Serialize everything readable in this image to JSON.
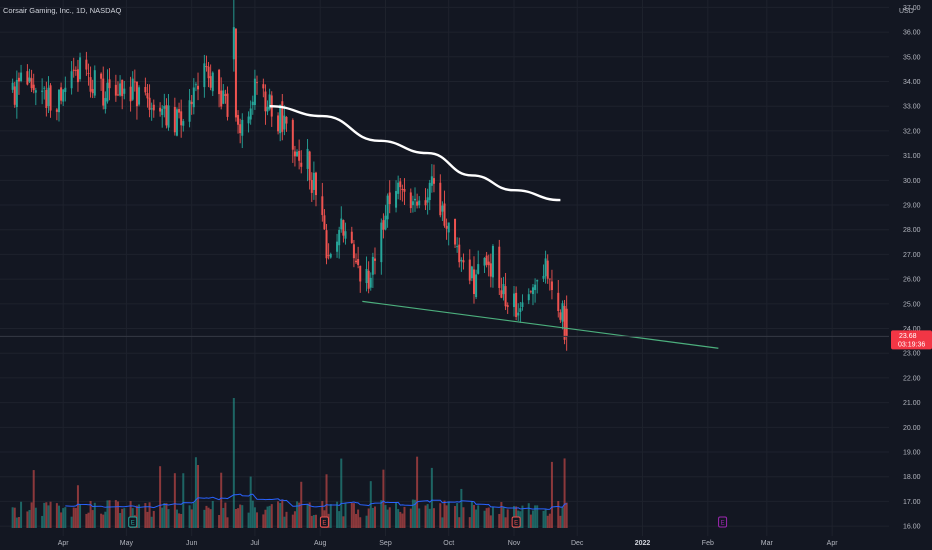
{
  "chart_data": {
    "type": "candlestick",
    "title": "Corsair Gaming, Inc., 1D, NASDAQ",
    "currency": "USD",
    "x_axis_labels": [
      "Apr",
      "May",
      "Jun",
      "Jul",
      "Aug",
      "Sep",
      "Oct",
      "Nov",
      "Dec",
      "2022",
      "Feb",
      "Mar",
      "Apr"
    ],
    "x_axis_dates": [
      "2021-04-01",
      "2021-05-01",
      "2021-06-01",
      "2021-07-01",
      "2021-08-01",
      "2021-09-01",
      "2021-10-01",
      "2021-11-01",
      "2021-12-01",
      "2022-01-01",
      "2022-02-01",
      "2022-03-01",
      "2022-04-01"
    ],
    "x_range": [
      "2021-03-02",
      "2022-04-28"
    ],
    "y_ticks": [
      16.0,
      17.0,
      18.0,
      19.0,
      20.0,
      21.0,
      22.0,
      23.0,
      24.0,
      25.0,
      26.0,
      27.0,
      28.0,
      29.0,
      30.0,
      31.0,
      32.0,
      33.0,
      34.0,
      35.0,
      36.0,
      37.0
    ],
    "ylim": [
      15.6,
      37.3
    ],
    "last_price": "23.68",
    "countdown": "03:19:36",
    "price_anchors": [
      {
        "date": "2021-03-08",
        "price": 33.6
      },
      {
        "date": "2021-03-18",
        "price": 33.9
      },
      {
        "date": "2021-03-30",
        "price": 33.2
      },
      {
        "date": "2021-04-09",
        "price": 34.4
      },
      {
        "date": "2021-04-19",
        "price": 33.6
      },
      {
        "date": "2021-05-03",
        "price": 33.8
      },
      {
        "date": "2021-05-14",
        "price": 32.5
      },
      {
        "date": "2021-05-26",
        "price": 32.4
      },
      {
        "date": "2021-06-07",
        "price": 34.2
      },
      {
        "date": "2021-06-15",
        "price": 33.4
      },
      {
        "date": "2021-06-24",
        "price": 32.5
      },
      {
        "date": "2021-07-01",
        "price": 33.6
      },
      {
        "date": "2021-07-12",
        "price": 32.6
      },
      {
        "date": "2021-07-26",
        "price": 30.8
      },
      {
        "date": "2021-08-04",
        "price": 27.4
      },
      {
        "date": "2021-08-11",
        "price": 28.2
      },
      {
        "date": "2021-08-20",
        "price": 25.8
      },
      {
        "date": "2021-08-27",
        "price": 26.6
      },
      {
        "date": "2021-09-03",
        "price": 29.6
      },
      {
        "date": "2021-09-14",
        "price": 29.4
      },
      {
        "date": "2021-09-23",
        "price": 29.6
      },
      {
        "date": "2021-09-30",
        "price": 28.2
      },
      {
        "date": "2021-10-13",
        "price": 26.0
      },
      {
        "date": "2021-10-22",
        "price": 26.8
      },
      {
        "date": "2021-10-29",
        "price": 25.0
      },
      {
        "date": "2021-11-05",
        "price": 24.6
      },
      {
        "date": "2021-11-10",
        "price": 26.3
      },
      {
        "date": "2021-11-17",
        "price": 26.4
      },
      {
        "date": "2021-11-23",
        "price": 24.8
      },
      {
        "date": "2021-11-26",
        "price": 23.7
      }
    ],
    "spike": {
      "date": "2021-06-21",
      "high": 37.3,
      "open": 34.9,
      "close": 36.2
    },
    "moving_average": {
      "color": "#ffffff",
      "points": [
        {
          "date": "2021-07-08",
          "price": 33.0
        },
        {
          "date": "2021-08-02",
          "price": 32.6
        },
        {
          "date": "2021-08-29",
          "price": 31.6
        },
        {
          "date": "2021-09-21",
          "price": 31.1
        },
        {
          "date": "2021-10-12",
          "price": 30.2
        },
        {
          "date": "2021-11-01",
          "price": 29.6
        },
        {
          "date": "2021-11-23",
          "price": 29.2
        }
      ]
    },
    "trendline": {
      "color": "#4caf7d",
      "start": {
        "date": "2021-08-21",
        "price": 25.1
      },
      "end": {
        "date": "2022-02-06",
        "price": 23.2
      }
    },
    "earnings_markers": [
      {
        "date": "2021-05-04",
        "label": "E",
        "color": "#26a69a"
      },
      {
        "date": "2021-08-03",
        "label": "E",
        "color": "#ef5350"
      },
      {
        "date": "2021-11-02",
        "label": "E",
        "color": "#ef5350"
      },
      {
        "date": "2022-02-08",
        "label": "E",
        "color": "#9c27b0"
      }
    ],
    "volume_spike_date": "2021-06-21",
    "colors": {
      "background": "#131722",
      "up": "#26a69a",
      "down": "#ef5350",
      "volume_up": "#26a69a",
      "volume_down": "#ef5350",
      "volume_ma": "#2962ff",
      "grid": "#1e222d",
      "text": "#b2b5be",
      "crosshair": "#363a45"
    }
  }
}
